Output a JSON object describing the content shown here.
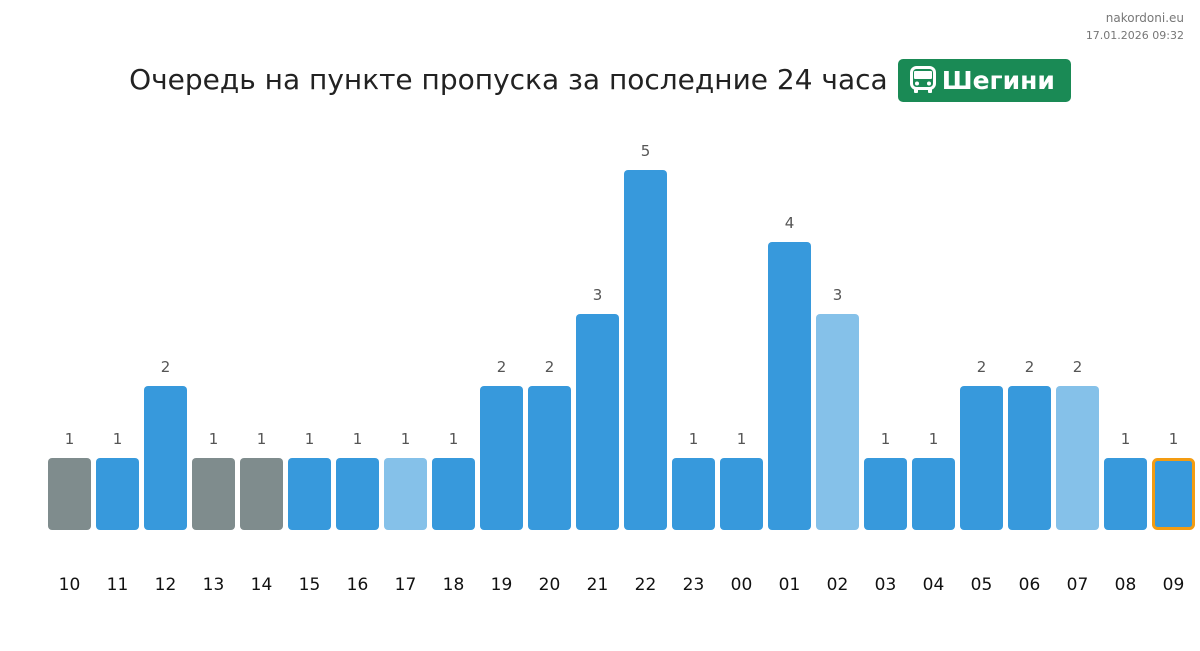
{
  "site": {
    "name": "nakordoni.eu",
    "timestamp": "17.01.2026 09:32"
  },
  "header": {
    "title": "Очередь на пункте пропуска за последние 24 часа",
    "badge_icon": "bus-icon",
    "badge_label": "Шегини"
  },
  "colors": {
    "default": "#3799dc",
    "light": "#85c1e9",
    "gray": "#7f8c8d",
    "highlight_border": "#f39c12",
    "badge": "#1a8a55"
  },
  "chart_data": {
    "type": "bar",
    "title": "Очередь на пункте пропуска за последние 24 часа",
    "xlabel": "",
    "ylabel": "",
    "ylim": [
      0,
      5.5
    ],
    "grid": false,
    "categories": [
      "10",
      "11",
      "12",
      "13",
      "14",
      "15",
      "16",
      "17",
      "18",
      "19",
      "20",
      "21",
      "22",
      "23",
      "00",
      "01",
      "02",
      "03",
      "04",
      "05",
      "06",
      "07",
      "08",
      "09"
    ],
    "values": [
      1,
      1,
      2,
      1,
      1,
      1,
      1,
      1,
      1,
      2,
      2,
      3,
      5,
      1,
      1,
      4,
      3,
      1,
      1,
      2,
      2,
      2,
      1,
      1
    ],
    "bar_style": [
      "gray",
      "default",
      "default",
      "gray",
      "gray",
      "default",
      "default",
      "light",
      "default",
      "default",
      "default",
      "default",
      "default",
      "default",
      "default",
      "default",
      "light",
      "default",
      "default",
      "default",
      "default",
      "light",
      "default",
      "highlight"
    ]
  }
}
